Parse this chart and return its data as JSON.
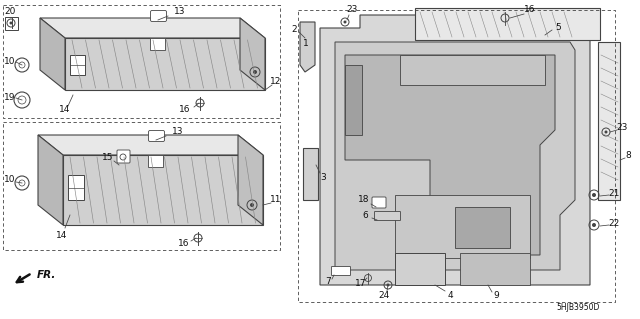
{
  "bg_color": "#ffffff",
  "diagram_id": "5HJB3950D",
  "lc": "#444444",
  "lw": 0.8
}
